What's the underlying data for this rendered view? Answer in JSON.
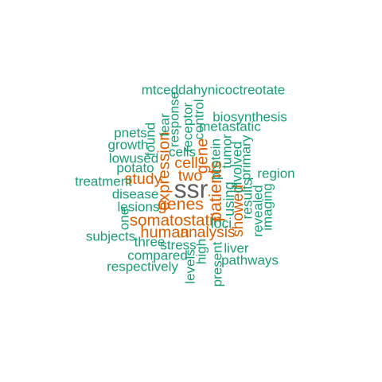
{
  "chart_data": {
    "type": "wordcloud",
    "colors": {
      "high": "#5f5f5f",
      "mid": "#d95f02",
      "low": "#1b9e77"
    },
    "words": [
      {
        "text": "ssr",
        "weight": 1.0,
        "group": "high"
      },
      {
        "text": "patients",
        "weight": 0.56,
        "group": "mid"
      },
      {
        "text": "genes",
        "weight": 0.53,
        "group": "mid"
      },
      {
        "text": "expression",
        "weight": 0.5,
        "group": "mid"
      },
      {
        "text": "somatostatin",
        "weight": 0.5,
        "group": "mid"
      },
      {
        "text": "gene",
        "weight": 0.48,
        "group": "mid"
      },
      {
        "text": "human",
        "weight": 0.48,
        "group": "mid"
      },
      {
        "text": "cell",
        "weight": 0.46,
        "group": "mid"
      },
      {
        "text": "study",
        "weight": 0.46,
        "group": "mid"
      },
      {
        "text": "two",
        "weight": 0.46,
        "group": "mid"
      },
      {
        "text": "showed",
        "weight": 0.44,
        "group": "mid"
      },
      {
        "text": "analysis",
        "weight": 0.44,
        "group": "mid"
      },
      {
        "text": "using",
        "weight": 0.4,
        "group": "low"
      },
      {
        "text": "involved",
        "weight": 0.38,
        "group": "low"
      },
      {
        "text": "loci",
        "weight": 0.37,
        "group": "low"
      },
      {
        "text": "results",
        "weight": 0.36,
        "group": "low"
      },
      {
        "text": "protein",
        "weight": 0.35,
        "group": "low"
      },
      {
        "text": "mtceddahynicoctreotate",
        "weight": 0.35,
        "group": "low"
      },
      {
        "text": "biosynthesis",
        "weight": 0.35,
        "group": "low"
      },
      {
        "text": "metastatic",
        "weight": 0.35,
        "group": "low"
      },
      {
        "text": "pnets",
        "weight": 0.35,
        "group": "low"
      },
      {
        "text": "growth",
        "weight": 0.35,
        "group": "low"
      },
      {
        "text": "found",
        "weight": 0.35,
        "group": "low"
      },
      {
        "text": "fear",
        "weight": 0.35,
        "group": "low"
      },
      {
        "text": "response",
        "weight": 0.35,
        "group": "low"
      },
      {
        "text": "receptor",
        "weight": 0.35,
        "group": "low"
      },
      {
        "text": "control",
        "weight": 0.35,
        "group": "low"
      },
      {
        "text": "cells",
        "weight": 0.35,
        "group": "low"
      },
      {
        "text": "tumor",
        "weight": 0.35,
        "group": "low"
      },
      {
        "text": "primary",
        "weight": 0.35,
        "group": "low"
      },
      {
        "text": "lowused",
        "weight": 0.35,
        "group": "low"
      },
      {
        "text": "potato",
        "weight": 0.35,
        "group": "low"
      },
      {
        "text": "region",
        "weight": 0.35,
        "group": "low"
      },
      {
        "text": "treatment",
        "weight": 0.35,
        "group": "low"
      },
      {
        "text": "disease",
        "weight": 0.35,
        "group": "low"
      },
      {
        "text": "revealed",
        "weight": 0.35,
        "group": "low"
      },
      {
        "text": "imaging",
        "weight": 0.35,
        "group": "low"
      },
      {
        "text": "lesions",
        "weight": 0.35,
        "group": "low"
      },
      {
        "text": "one",
        "weight": 0.35,
        "group": "low"
      },
      {
        "text": "subjects",
        "weight": 0.35,
        "group": "low"
      },
      {
        "text": "three",
        "weight": 0.35,
        "group": "low"
      },
      {
        "text": "stress",
        "weight": 0.35,
        "group": "low"
      },
      {
        "text": "high",
        "weight": 0.35,
        "group": "low"
      },
      {
        "text": "liver",
        "weight": 0.35,
        "group": "low"
      },
      {
        "text": "compared",
        "weight": 0.35,
        "group": "low"
      },
      {
        "text": "levels",
        "weight": 0.35,
        "group": "low"
      },
      {
        "text": "present",
        "weight": 0.35,
        "group": "low"
      },
      {
        "text": "pathways",
        "weight": 0.35,
        "group": "low"
      },
      {
        "text": "respectively",
        "weight": 0.35,
        "group": "low"
      }
    ]
  }
}
